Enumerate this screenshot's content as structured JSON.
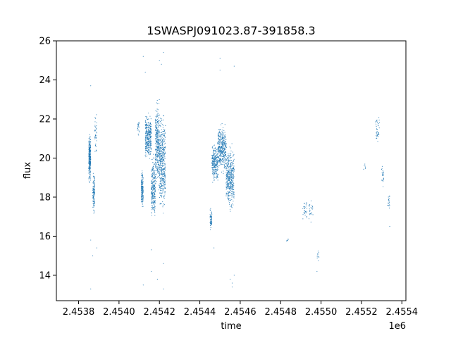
{
  "chart_data": {
    "type": "scatter",
    "title": "1SWASPJ091023.87-391858.3",
    "xlabel": "time",
    "ylabel": "flux",
    "x_offset_label": "1e6",
    "xlim": [
      2.45369,
      2.45542
    ],
    "ylim": [
      12.7,
      26
    ],
    "x_ticks": [
      2.4538,
      2.454,
      2.4542,
      2.4544,
      2.4546,
      2.4548,
      2.455,
      2.4552,
      2.4554
    ],
    "x_tick_labels": [
      "2.4538",
      "2.4540",
      "2.4542",
      "2.4544",
      "2.4546",
      "2.4548",
      "2.4550",
      "2.4552",
      "2.4554"
    ],
    "y_ticks": [
      14,
      16,
      18,
      20,
      22,
      24,
      26
    ],
    "y_tick_labels": [
      "14",
      "16",
      "18",
      "20",
      "22",
      "24",
      "26"
    ],
    "grid": false,
    "marker_color": "#1f77b4",
    "clusters": [
      {
        "x": [
          2.45385,
          2.45386
        ],
        "y": [
          18.5,
          21.5
        ],
        "n": 260
      },
      {
        "x": [
          2.45387,
          2.45388
        ],
        "y": [
          17.0,
          19.5
        ],
        "n": 120
      },
      {
        "x": [
          2.45388,
          2.45389
        ],
        "y": [
          20.0,
          22.5
        ],
        "n": 40
      },
      {
        "x": [
          2.45409,
          2.4541
        ],
        "y": [
          21.0,
          22.2
        ],
        "n": 20
      },
      {
        "x": [
          2.45411,
          2.45412
        ],
        "y": [
          17.2,
          19.5
        ],
        "n": 150
      },
      {
        "x": [
          2.45413,
          2.45416
        ],
        "y": [
          19.5,
          22.5
        ],
        "n": 320
      },
      {
        "x": [
          2.45416,
          2.45418
        ],
        "y": [
          16.5,
          20.5
        ],
        "n": 260
      },
      {
        "x": [
          2.45418,
          2.4542
        ],
        "y": [
          18.0,
          23.5
        ],
        "n": 320
      },
      {
        "x": [
          2.4542,
          2.45423
        ],
        "y": [
          16.8,
          22.8
        ],
        "n": 420
      },
      {
        "x": [
          2.45445,
          2.45446
        ],
        "y": [
          16.2,
          17.5
        ],
        "n": 60
      },
      {
        "x": [
          2.45446,
          2.45449
        ],
        "y": [
          18.5,
          21.0
        ],
        "n": 260
      },
      {
        "x": [
          2.45449,
          2.45453
        ],
        "y": [
          19.0,
          22.0
        ],
        "n": 380
      },
      {
        "x": [
          2.45453,
          2.45457
        ],
        "y": [
          17.0,
          21.0
        ],
        "n": 420
      },
      {
        "x": [
          2.45483,
          2.45484
        ],
        "y": [
          15.7,
          15.9
        ],
        "n": 6
      },
      {
        "x": [
          2.45491,
          2.45493
        ],
        "y": [
          16.8,
          17.9
        ],
        "n": 30
      },
      {
        "x": [
          2.45494,
          2.45496
        ],
        "y": [
          16.6,
          18.0
        ],
        "n": 25
      },
      {
        "x": [
          2.45498,
          2.45499
        ],
        "y": [
          14.5,
          15.5
        ],
        "n": 10
      },
      {
        "x": [
          2.45521,
          2.45522
        ],
        "y": [
          19.3,
          19.8
        ],
        "n": 6
      },
      {
        "x": [
          2.45527,
          2.45529
        ],
        "y": [
          20.5,
          22.3
        ],
        "n": 40
      },
      {
        "x": [
          2.4553,
          2.45531
        ],
        "y": [
          18.5,
          19.8
        ],
        "n": 25
      },
      {
        "x": [
          2.45533,
          2.45534
        ],
        "y": [
          17.2,
          18.3
        ],
        "n": 20
      }
    ],
    "outliers": {
      "x": [
        2.45386,
        2.45386,
        2.45387,
        2.45389,
        2.45412,
        2.45412,
        2.45416,
        2.4542,
        2.45421,
        2.45422,
        2.45422,
        2.4545,
        2.4545,
        2.45456,
        2.45457,
        2.45457,
        2.45456,
        2.45386,
        2.45413,
        2.45416,
        2.45419,
        2.45422,
        2.45447,
        2.45455,
        2.45498,
        2.45534
      ],
      "y": [
        23.7,
        13.3,
        15.0,
        15.4,
        25.2,
        13.5,
        14.2,
        25.0,
        24.8,
        25.4,
        13.3,
        25.1,
        24.5,
        13.4,
        24.7,
        14.0,
        13.6,
        15.8,
        24.4,
        15.3,
        13.8,
        14.6,
        15.4,
        13.8,
        14.2,
        16.5
      ]
    }
  }
}
